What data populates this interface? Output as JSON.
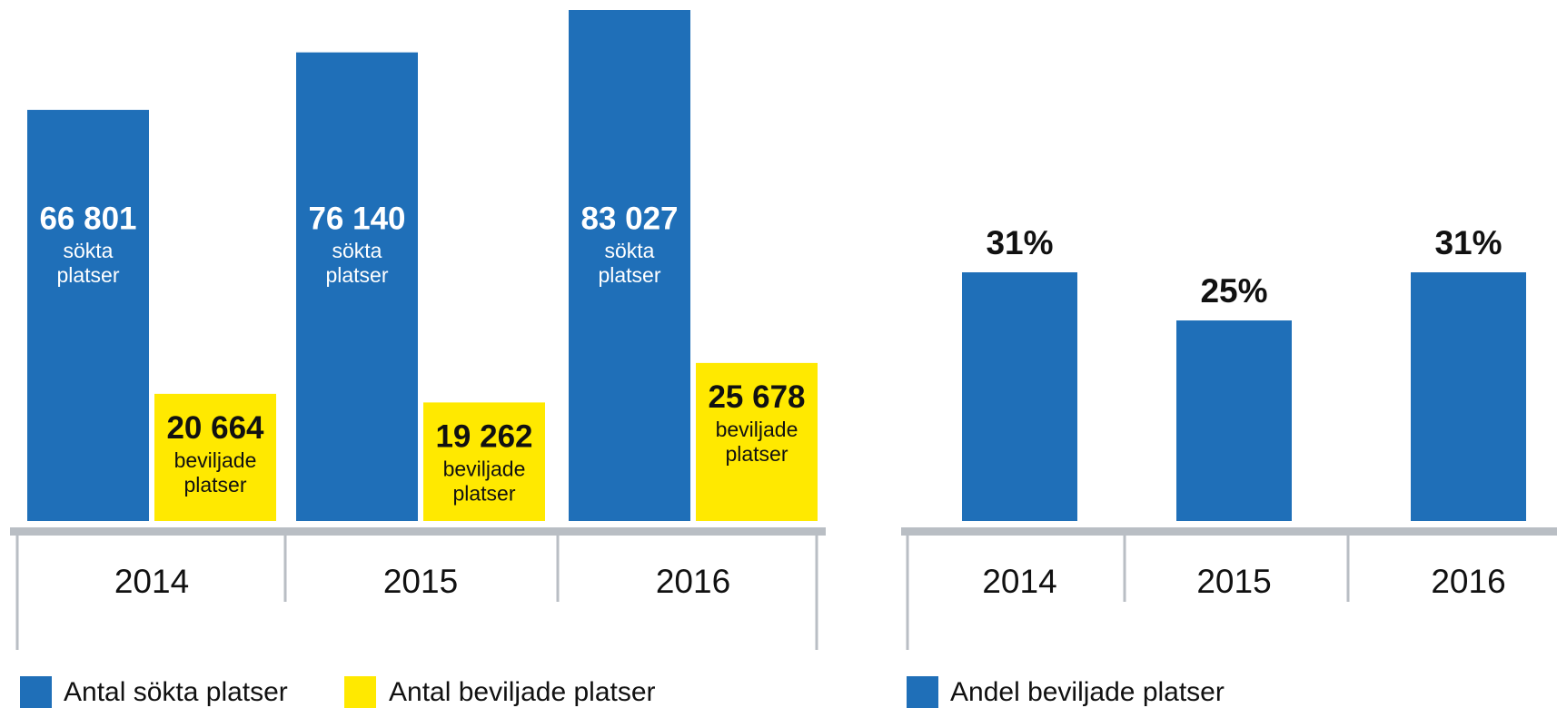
{
  "chart_data": [
    {
      "type": "bar",
      "categories": [
        "2014",
        "2015",
        "2016"
      ],
      "series": [
        {
          "name": "Antal sökta platser",
          "color": "#1f6fb8",
          "values": [
            66801,
            76140,
            83027
          ],
          "value_labels": [
            "66 801",
            "76 140",
            "83 027"
          ],
          "bar_text": [
            "sökta",
            "platser"
          ]
        },
        {
          "name": "Antal beviljade platser",
          "color": "#ffe900",
          "values": [
            20664,
            19262,
            25678
          ],
          "value_labels": [
            "20 664",
            "19 262",
            "25 678"
          ],
          "bar_text": [
            "beviljade",
            "platser"
          ]
        }
      ]
    },
    {
      "type": "bar",
      "categories": [
        "2014",
        "2015",
        "2016"
      ],
      "series": [
        {
          "name": "Andel beviljade platser",
          "color": "#1f6fb8",
          "values": [
            31,
            25,
            31
          ],
          "value_labels": [
            "31%",
            "25%",
            "31%"
          ]
        }
      ]
    }
  ]
}
